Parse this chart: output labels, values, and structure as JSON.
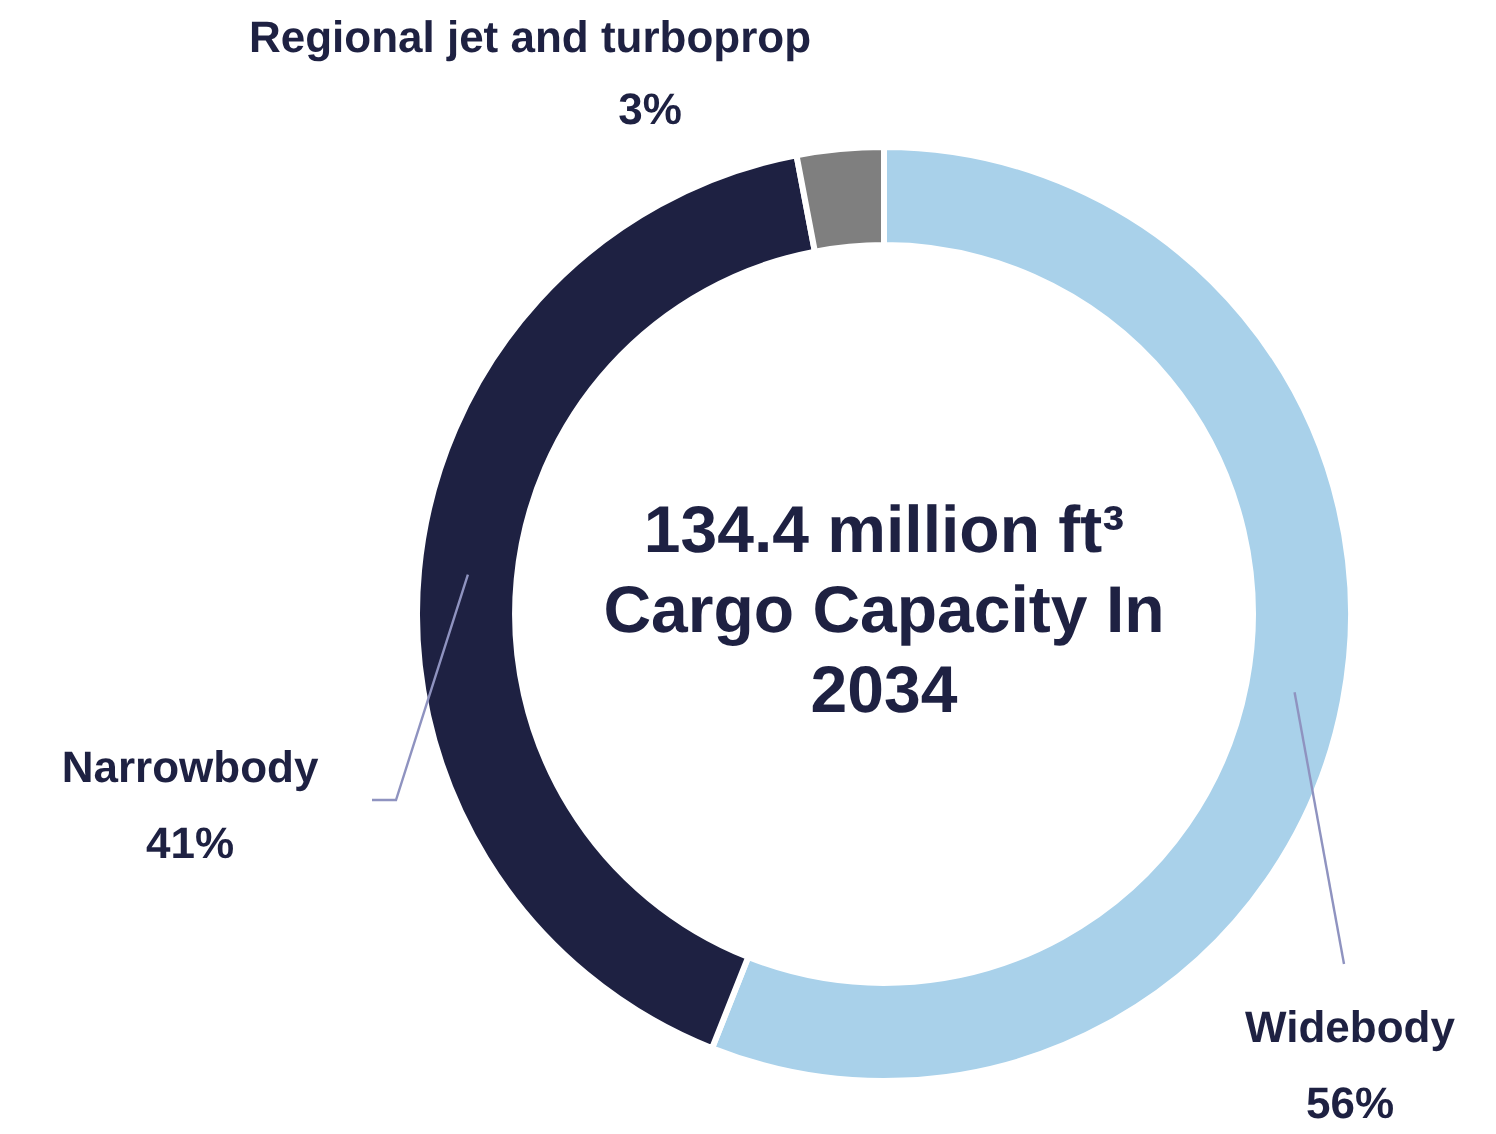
{
  "chart_data": {
    "type": "donut",
    "title": "134.4 million ft³ Cargo Capacity In 2034",
    "categories": [
      "Widebody",
      "Narrowbody",
      "Regional jet and turboprop"
    ],
    "values": [
      56,
      41,
      3
    ],
    "colors": [
      "#a9d1ea",
      "#1e2142",
      "#7f7f7f"
    ],
    "value_labels": [
      "56%",
      "41%",
      "3%"
    ],
    "legend": false
  }
}
